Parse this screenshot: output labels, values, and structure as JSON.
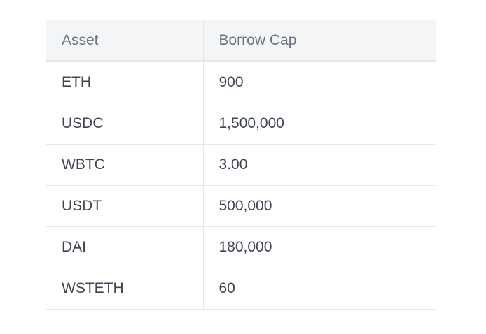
{
  "table": {
    "headers": [
      "Asset",
      "Borrow Cap"
    ],
    "rows": [
      [
        "ETH",
        "900"
      ],
      [
        "USDC",
        "1,500,000"
      ],
      [
        "WBTC",
        "3.00"
      ],
      [
        "USDT",
        "500,000"
      ],
      [
        "DAI",
        "180,000"
      ],
      [
        "WSTETH",
        "60"
      ]
    ]
  }
}
